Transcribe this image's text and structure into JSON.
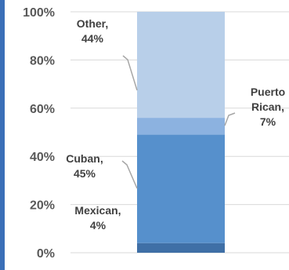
{
  "chart_data": {
    "type": "bar",
    "stacked": true,
    "percent": true,
    "ylim": [
      0,
      100
    ],
    "yticks": [
      "0%",
      "20%",
      "40%",
      "60%",
      "80%",
      "100%"
    ],
    "grid": true,
    "series": [
      {
        "name": "Mexican",
        "value": 4,
        "color": "#3f6fa6",
        "label_lines": [
          "Mexican,",
          "4%"
        ]
      },
      {
        "name": "Cuban",
        "value": 45,
        "color": "#5690cc",
        "label_lines": [
          "Cuban,",
          "45%"
        ]
      },
      {
        "name": "Puerto Rican",
        "value": 7,
        "color": "#8cb2e0",
        "label_lines": [
          "Puerto",
          "Rican,",
          "7%"
        ]
      },
      {
        "name": "Other",
        "value": 44,
        "color": "#b8cfe9",
        "label_lines": [
          "Other,",
          "44%"
        ]
      }
    ]
  }
}
